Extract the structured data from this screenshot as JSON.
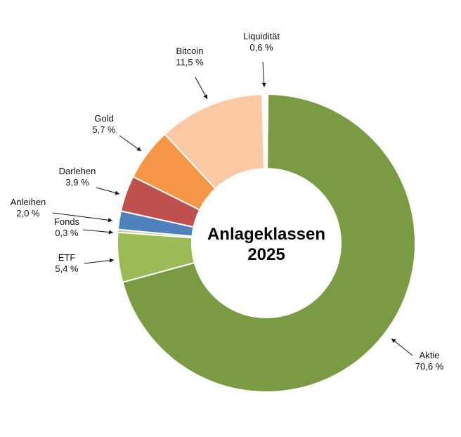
{
  "chart_data": {
    "type": "pie",
    "variant": "donut",
    "center_title": [
      "Anlageklassen",
      "2025"
    ],
    "slices": [
      {
        "label": "Aktie",
        "value": 70.6,
        "value_text": "70,6 %",
        "color": "#7a9a44"
      },
      {
        "label": "ETF",
        "value": 5.4,
        "value_text": "5,4 %",
        "color": "#9bbb59"
      },
      {
        "label": "Fonds",
        "value": 0.3,
        "value_text": "0,3 %",
        "color": "#b8d08a"
      },
      {
        "label": "Anleihen",
        "value": 2.0,
        "value_text": "2,0 %",
        "color": "#4f81bd"
      },
      {
        "label": "Darlehen",
        "value": 3.9,
        "value_text": "3,9 %",
        "color": "#c0504d"
      },
      {
        "label": "Gold",
        "value": 5.7,
        "value_text": "5,7 %",
        "color": "#f79646"
      },
      {
        "label": "Bitcoin",
        "value": 11.5,
        "value_text": "11,5 %",
        "color": "#fac9a3"
      },
      {
        "label": "Liquidität",
        "value": 0.6,
        "value_text": "0,6 %",
        "color": "#ffffff"
      }
    ]
  }
}
